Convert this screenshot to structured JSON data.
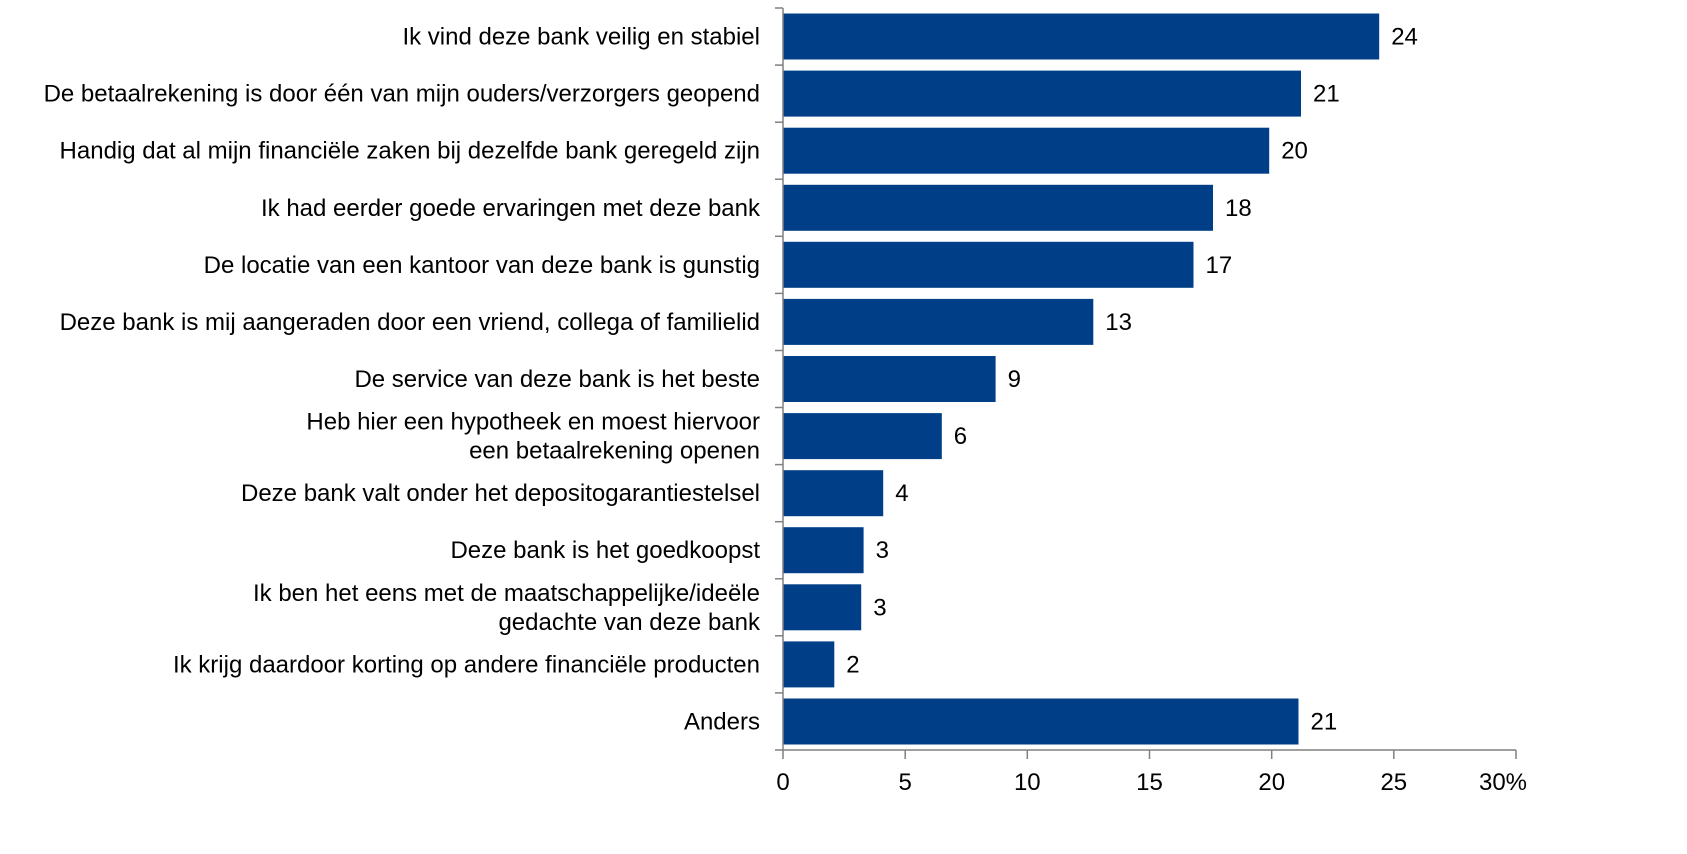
{
  "chart_data": {
    "type": "bar",
    "orientation": "horizontal",
    "categories": [
      [
        "Ik vind deze bank veilig en stabiel"
      ],
      [
        "De betaalrekening is door één van mijn ouders/verzorgers geopend"
      ],
      [
        "Handig dat al mijn financiële zaken bij dezelfde bank geregeld zijn"
      ],
      [
        "Ik had eerder goede ervaringen met deze bank"
      ],
      [
        "De locatie van een kantoor van deze bank is gunstig"
      ],
      [
        "Deze bank is mij aangeraden door een vriend, collega of familielid"
      ],
      [
        "De service van deze bank is het beste"
      ],
      [
        "Heb hier een hypotheek en moest hiervoor",
        "een betaalrekening openen"
      ],
      [
        "Deze bank valt onder het depositogarantiestelsel"
      ],
      [
        "Deze bank is het goedkoopst"
      ],
      [
        "Ik ben het eens met de maatschappelijke/ideële",
        "gedachte van deze bank"
      ],
      [
        "Ik krijg daardoor korting op andere financiële producten"
      ],
      [
        "Anders"
      ]
    ],
    "values": [
      24.4,
      21.2,
      19.9,
      17.6,
      16.8,
      12.7,
      8.7,
      6.5,
      4.1,
      3.3,
      3.2,
      2.1,
      21.1
    ],
    "data_labels": [
      "24",
      "21",
      "20",
      "18",
      "17",
      "13",
      "9",
      "6",
      "4",
      "3",
      "3",
      "2",
      "21"
    ],
    "xlim": [
      0,
      30
    ],
    "x_ticks": [
      "0",
      "5",
      "10",
      "15",
      "20",
      "25",
      "30%"
    ],
    "grid": false,
    "legend": "none",
    "bar_color": "#003f87",
    "axis_color": "#808080"
  }
}
